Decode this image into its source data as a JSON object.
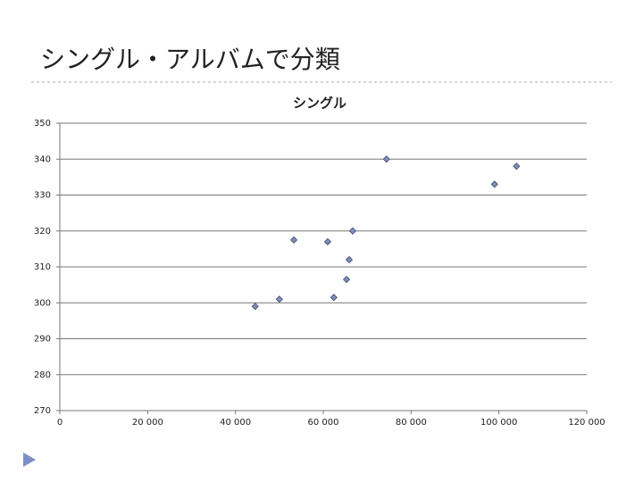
{
  "slide_title": "シングル・アルバムで分類",
  "chart_data": {
    "type": "scatter",
    "title": "シングル",
    "x": [
      44500,
      50000,
      53300,
      61000,
      62400,
      65300,
      65900,
      66700,
      74400,
      99000,
      104000
    ],
    "values": [
      299,
      301,
      317.5,
      317,
      301.5,
      306.5,
      312,
      320,
      340,
      333,
      338
    ],
    "color": "#8090b8",
    "xlim": [
      0,
      120000
    ],
    "xticks": [
      0,
      {
        "value": 20000,
        "label": "20 000"
      },
      {
        "value": 40000,
        "label": "40 000"
      },
      {
        "value": 60000,
        "label": "60 000"
      },
      {
        "value": 80000,
        "label": "80 000"
      },
      {
        "value": 100000,
        "label": "100 000"
      },
      {
        "value": 120000,
        "label": "120 000"
      }
    ],
    "ylim": [
      270,
      350
    ],
    "yticks": [
      270,
      280,
      290,
      300,
      310,
      320,
      330,
      340,
      350
    ],
    "grid": true
  }
}
